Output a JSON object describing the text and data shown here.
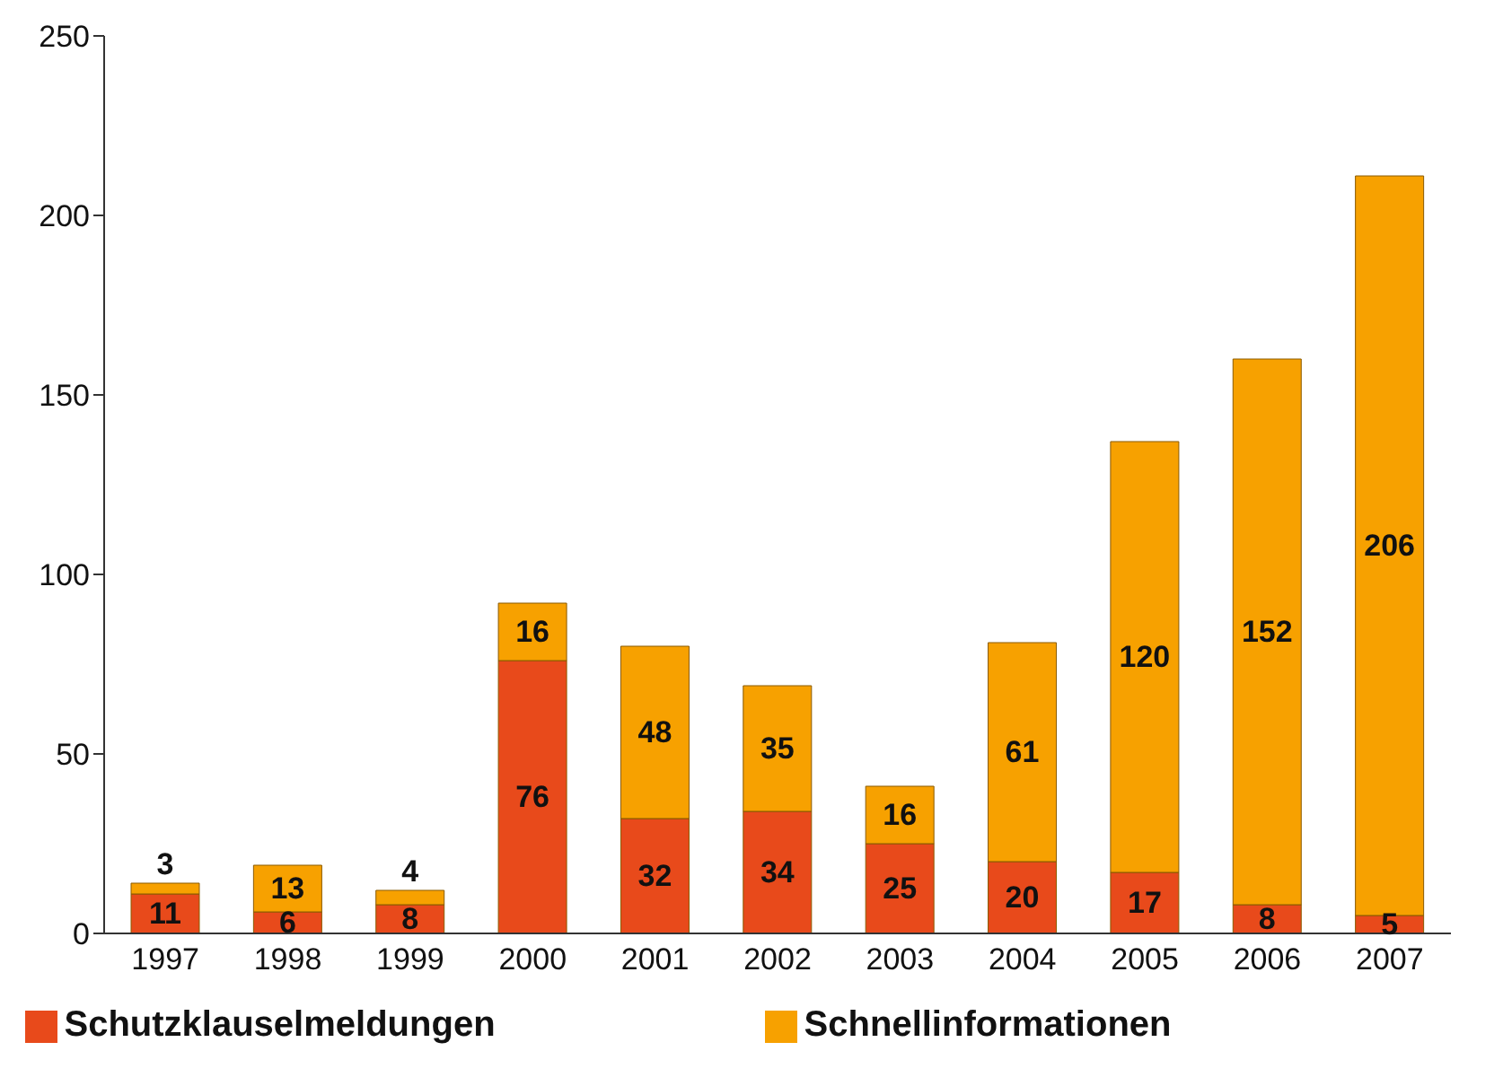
{
  "chart_data": {
    "type": "bar",
    "stacked": true,
    "categories": [
      "1997",
      "1998",
      "1999",
      "2000",
      "2001",
      "2002",
      "2003",
      "2004",
      "2005",
      "2006",
      "2007"
    ],
    "series": [
      {
        "name": "Schutzklauselmeldungen",
        "color": "#e84a1b",
        "values": [
          11,
          6,
          8,
          76,
          32,
          34,
          25,
          20,
          17,
          8,
          5
        ]
      },
      {
        "name": "Schnellinformationen",
        "color": "#f7a100",
        "values": [
          3,
          13,
          4,
          16,
          48,
          35,
          16,
          61,
          120,
          152,
          206
        ]
      }
    ],
    "ylim": [
      0,
      250
    ],
    "yticks": [
      0,
      50,
      100,
      150,
      200,
      250
    ],
    "grid": false,
    "legend": "bottom",
    "data_labels": true
  }
}
